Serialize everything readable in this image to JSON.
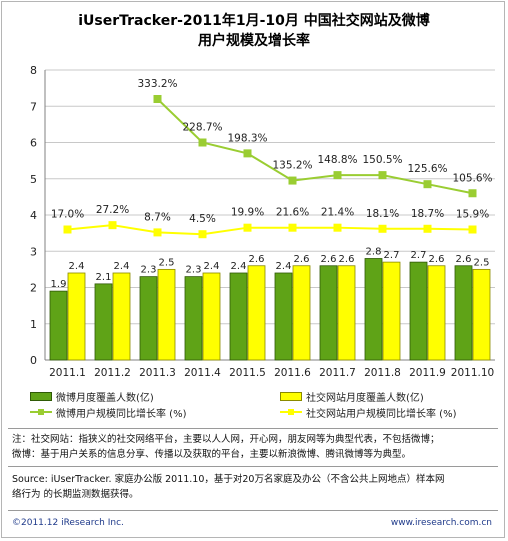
{
  "title_line1": "iUserTracker-2011年1月-10月 中国社交网站及微博",
  "title_line2": "用户规模及增长率",
  "chart_data": {
    "type": "bar",
    "categories": [
      "2011.1",
      "2011.2",
      "2011.3",
      "2011.4",
      "2011.5",
      "2011.6",
      "2011.7",
      "2011.8",
      "2011.9",
      "2011.10"
    ],
    "ylim": [
      0,
      8
    ],
    "y_ticks": [
      "0",
      "1",
      "2",
      "3",
      "4",
      "5",
      "6",
      "7",
      "8"
    ],
    "grid": true,
    "series": [
      {
        "name": "微博月度覆盖人数(亿)",
        "kind": "bar",
        "color": "#5fa317",
        "values": [
          1.9,
          2.1,
          2.3,
          2.3,
          2.4,
          2.4,
          2.6,
          2.8,
          2.7,
          2.6
        ],
        "labels": [
          "1.9",
          "2.1",
          "2.3",
          "2.3",
          "2.4",
          "2.4",
          "2.6",
          "2.8",
          "2.7",
          "2.6"
        ]
      },
      {
        "name": "社交网站月度覆盖人数(亿)",
        "kind": "bar",
        "color": "#ffff00",
        "values": [
          2.4,
          2.4,
          2.5,
          2.4,
          2.6,
          2.6,
          2.6,
          2.7,
          2.6,
          2.5
        ],
        "labels": [
          "2.4",
          "2.4",
          "2.5",
          "2.4",
          "2.6",
          "2.6",
          "2.6",
          "2.7",
          "2.6",
          "2.5"
        ]
      },
      {
        "name": "微博用户规模同比增长率 (%)",
        "kind": "line",
        "color": "#9acd32",
        "values": [
          null,
          null,
          7.2,
          6.0,
          5.7,
          4.95,
          5.1,
          5.1,
          4.85,
          4.6
        ],
        "labels": [
          "",
          "",
          "333.2%",
          "228.7%",
          "198.3%",
          "135.2%",
          "148.8%",
          "150.5%",
          "125.6%",
          "105.6%"
        ]
      },
      {
        "name": "社交网站用户规模同比增长率 (%)",
        "kind": "line",
        "color": "#ffff00",
        "values": [
          3.6,
          3.72,
          3.52,
          3.47,
          3.65,
          3.65,
          3.65,
          3.62,
          3.62,
          3.6
        ],
        "labels": [
          "17.0%",
          "27.2%",
          "8.7%",
          "4.5%",
          "19.9%",
          "21.6%",
          "21.4%",
          "18.1%",
          "18.7%",
          "15.9%"
        ]
      }
    ]
  },
  "legend": {
    "weibo_bar": "微博月度覆盖人数(亿)",
    "sns_bar": "社交网站月度覆盖人数(亿)",
    "weibo_line": "微博用户规模同比增长率 (%)",
    "sns_line": "社交网站用户规模同比增长率 (%)"
  },
  "note": {
    "line1": "注：社交网站：指狭义的社交网络平台，主要以人人网，开心网，朋友网等为典型代表，不包括微博；",
    "line2": "微博：基于用户关系的信息分享、传播以及获取的平台，主要以新浪微博、腾讯微博等为典型。"
  },
  "source": {
    "line1": "Source: iUserTracker. 家庭办公版 2011.10，基于对20万名家庭及办公（不含公共上网地点）样本网",
    "line2": "络行为 的长期监测数据获得。"
  },
  "footer": {
    "copyright": "©2011.12 iResearch Inc.",
    "url": "www.iresearch.com.cn"
  },
  "colors": {
    "weibo": "#5fa317",
    "sns": "#ffff00",
    "weibo_line": "#9acd32",
    "grid": "#c8c8c8",
    "footer_text": "#1f3a8a"
  }
}
